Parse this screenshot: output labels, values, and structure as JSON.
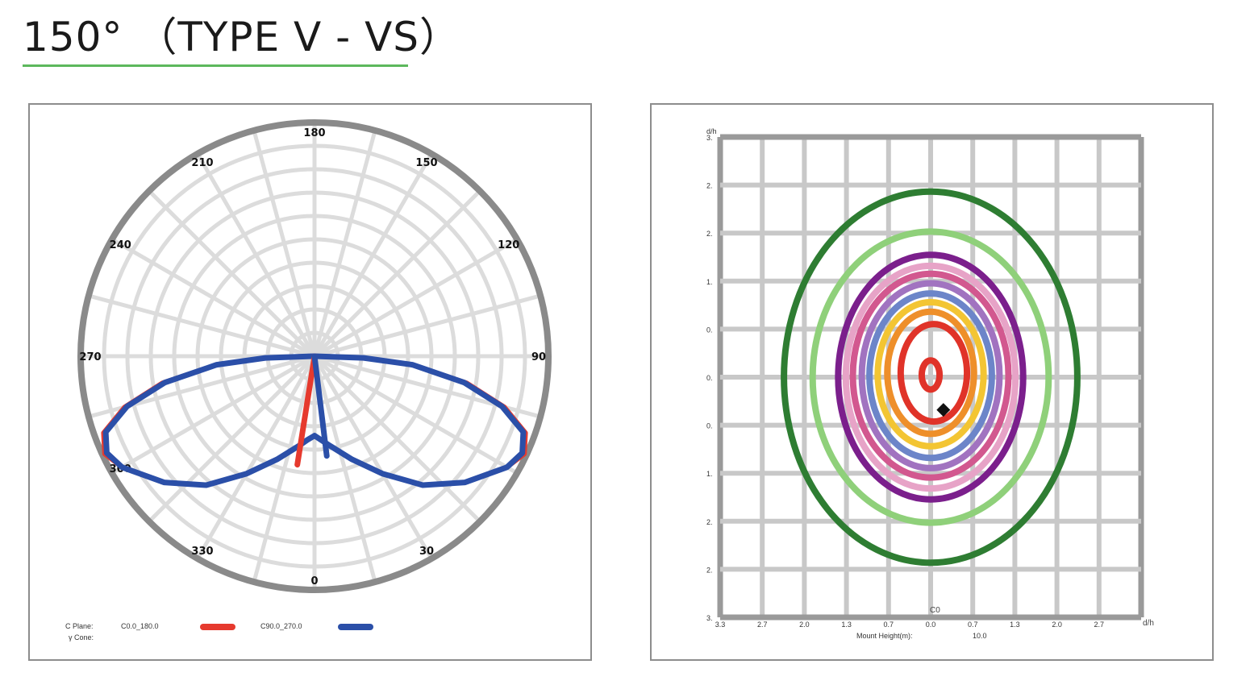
{
  "page_title": "150°  （TYPE Ⅴ - VS）",
  "colors": {
    "title_underline": "#5cb85c",
    "panel_border": "#8d8d8d",
    "grid": "#dcdcdc",
    "grid_outer": "#8a8a8a",
    "iso_grid": "#c8c8c8"
  },
  "chart_data": [
    {
      "type": "polar",
      "angle_labels": [
        "180",
        "150",
        "120",
        "90",
        "0",
        "30",
        "330",
        "300",
        "270",
        "240",
        "210"
      ],
      "angle_label_values": [
        180,
        150,
        120,
        90,
        0,
        30,
        330,
        300,
        270,
        240,
        210
      ],
      "legend": {
        "c_plane_label": "C Plane:",
        "gamma_cone_label": "γ Cone:"
      },
      "series": [
        {
          "name": "C0.0_180.0",
          "color": "#e63a2e",
          "points": [
            [
              0,
              0.34
            ],
            [
              10,
              0.39
            ],
            [
              20,
              0.47
            ],
            [
              30,
              0.58
            ],
            [
              40,
              0.72
            ],
            [
              50,
              0.84
            ],
            [
              60,
              0.95
            ],
            [
              65,
              0.99
            ],
            [
              70,
              0.96
            ],
            [
              75,
              0.84
            ],
            [
              80,
              0.66
            ],
            [
              85,
              0.42
            ],
            [
              88,
              0.21
            ],
            [
              90,
              0
            ],
            [
              270,
              0
            ],
            [
              272,
              0.21
            ],
            [
              275,
              0.42
            ],
            [
              280,
              0.66
            ],
            [
              285,
              0.84
            ],
            [
              290,
              0.96
            ],
            [
              295,
              0.99
            ],
            [
              300,
              0.95
            ],
            [
              310,
              0.84
            ],
            [
              320,
              0.72
            ],
            [
              330,
              0.58
            ],
            [
              340,
              0.47
            ],
            [
              350,
              0.39
            ],
            [
              355,
              0.36
            ],
            [
              360,
              0.34
            ]
          ]
        },
        {
          "name": "C90.0_270.0",
          "color": "#2b4fa8",
          "points": [
            [
              0,
              0.34
            ],
            [
              10,
              0.39
            ],
            [
              20,
              0.47
            ],
            [
              30,
              0.58
            ],
            [
              40,
              0.72
            ],
            [
              50,
              0.84
            ],
            [
              60,
              0.95
            ],
            [
              65,
              0.98
            ],
            [
              70,
              0.95
            ],
            [
              75,
              0.83
            ],
            [
              80,
              0.65
            ],
            [
              85,
              0.42
            ],
            [
              88,
              0.21
            ],
            [
              90,
              0
            ],
            [
              270,
              0
            ],
            [
              272,
              0.21
            ],
            [
              275,
              0.42
            ],
            [
              280,
              0.65
            ],
            [
              285,
              0.83
            ],
            [
              290,
              0.95
            ],
            [
              295,
              0.98
            ],
            [
              300,
              0.95
            ],
            [
              310,
              0.84
            ],
            [
              320,
              0.72
            ],
            [
              330,
              0.58
            ],
            [
              340,
              0.47
            ],
            [
              350,
              0.39
            ],
            [
              355,
              0.36
            ],
            [
              360,
              0.34
            ]
          ]
        }
      ],
      "spokes": [
        {
          "series": "C0.0_180.0",
          "angle": 351,
          "r": 0.47
        },
        {
          "series": "C90.0_270.0",
          "angle": 7,
          "r": 0.43
        }
      ]
    },
    {
      "type": "isolux",
      "y_axis_label": "d/h",
      "x_axis_label": "d/h",
      "y_ticks": [
        "3.",
        "2.",
        "2.",
        "1.",
        "0.",
        "0.",
        "0.",
        "1.",
        "2.",
        "2.",
        "3."
      ],
      "x_ticks": [
        "3.3",
        "2.7",
        "2.0",
        "1.3",
        "0.7",
        "0.0",
        "0.7",
        "1.3",
        "2.0",
        "2.7"
      ],
      "center_label": "C0",
      "mount_height_label": "Mount Height(m):",
      "mount_height_value": "10.0",
      "range": [
        -3.3,
        3.3
      ],
      "contours": [
        {
          "color": "#2e7d32",
          "rx": 2.3,
          "ry": 2.55,
          "cx": 0.0,
          "cy": 0.0
        },
        {
          "color": "#8fd07a",
          "rx": 1.85,
          "ry": 2.0,
          "cx": 0.0,
          "cy": 0.0
        },
        {
          "color": "#7b1f8c",
          "rx": 1.45,
          "ry": 1.68,
          "cx": 0.0,
          "cy": 0.0
        },
        {
          "color": "#e7a3c7",
          "rx": 1.33,
          "ry": 1.53,
          "cx": 0.0,
          "cy": 0.0
        },
        {
          "color": "#d2588f",
          "rx": 1.22,
          "ry": 1.4,
          "cx": 0.0,
          "cy": 0.02
        },
        {
          "color": "#a173c0",
          "rx": 1.08,
          "ry": 1.27,
          "cx": 0.0,
          "cy": 0.02
        },
        {
          "color": "#6c85c9",
          "rx": 0.96,
          "ry": 1.13,
          "cx": 0.0,
          "cy": 0.02
        },
        {
          "color": "#f3c533",
          "rx": 0.83,
          "ry": 0.99,
          "cx": 0.0,
          "cy": 0.04
        },
        {
          "color": "#ee8f2a",
          "rx": 0.68,
          "ry": 0.84,
          "cx": 0.0,
          "cy": 0.06
        },
        {
          "color": "#e03329",
          "rx": 0.52,
          "ry": 0.67,
          "cx": 0.05,
          "cy": 0.06
        },
        {
          "color": "#e03329",
          "rx": 0.14,
          "ry": 0.2,
          "cx": 0.0,
          "cy": 0.03
        }
      ],
      "max_point": {
        "x": 0.2,
        "y": -0.45
      }
    }
  ]
}
